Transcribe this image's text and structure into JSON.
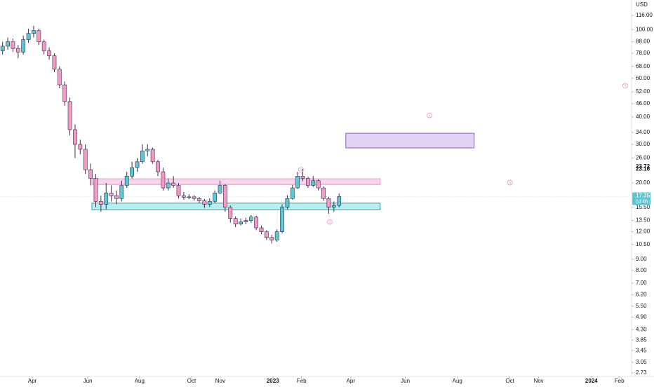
{
  "chart_data": {
    "type": "candlestick",
    "log_scale": true,
    "grid": false,
    "y_unit": "USD",
    "ylim": [
      2.73,
      116
    ],
    "yticks": [
      {
        "value": 116,
        "label": "116.00"
      },
      {
        "value": 100,
        "label": "100.00"
      },
      {
        "value": 88,
        "label": "88.00"
      },
      {
        "value": 78,
        "label": "78.00"
      },
      {
        "value": 68,
        "label": "68.00"
      },
      {
        "value": 60,
        "label": "60.00"
      },
      {
        "value": 52,
        "label": "52.00"
      },
      {
        "value": 46,
        "label": "46.00"
      },
      {
        "value": 40,
        "label": "40.00"
      },
      {
        "value": 34,
        "label": "34.00"
      },
      {
        "value": 30,
        "label": "30.00"
      },
      {
        "value": 26,
        "label": "26.00"
      },
      {
        "value": 20,
        "label": "20.00"
      },
      {
        "value": 15.5,
        "label": "15.50"
      },
      {
        "value": 13.5,
        "label": "13.50"
      },
      {
        "value": 12,
        "label": "12.00"
      },
      {
        "value": 10.5,
        "label": "10.50"
      },
      {
        "value": 9,
        "label": "9.00"
      },
      {
        "value": 8,
        "label": "8.00"
      },
      {
        "value": 7,
        "label": "7.00"
      },
      {
        "value": 6.2,
        "label": "6.20"
      },
      {
        "value": 5.5,
        "label": "5.50"
      },
      {
        "value": 4.9,
        "label": "4.90"
      },
      {
        "value": 4.3,
        "label": "4.30"
      },
      {
        "value": 3.85,
        "label": "3.85"
      },
      {
        "value": 3.45,
        "label": "3.45"
      },
      {
        "value": 3.05,
        "label": "3.05"
      },
      {
        "value": 2.73,
        "label": "2.73"
      }
    ],
    "price_labels": [
      {
        "value": 23.72,
        "label": "23.72"
      },
      {
        "value": 23.16,
        "label": "23.16"
      }
    ],
    "current_price": {
      "value": 17.35,
      "label": "17.35",
      "countdown": "1d 6h",
      "color": "#5bc8d6"
    },
    "xlim": [
      0,
      244
    ],
    "xticks": [
      {
        "value": 12.5,
        "label": "Apr"
      },
      {
        "value": 33.9,
        "label": "Jun"
      },
      {
        "value": 53.9,
        "label": "Aug"
      },
      {
        "value": 74,
        "label": "Oct"
      },
      {
        "value": 85.1,
        "label": "Nov"
      },
      {
        "value": 105.4,
        "label": "2023",
        "bold": true
      },
      {
        "value": 116.5,
        "label": "Feb"
      },
      {
        "value": 135.5,
        "label": "Apr"
      },
      {
        "value": 156.6,
        "label": "Jun"
      },
      {
        "value": 176.7,
        "label": "Aug"
      },
      {
        "value": 197,
        "label": "Oct"
      },
      {
        "value": 208.1,
        "label": "Nov"
      },
      {
        "value": 228.5,
        "label": "2024",
        "bold": true
      },
      {
        "value": 239.3,
        "label": "Feb"
      }
    ],
    "series": [
      {
        "up_color": "#5bc8d6",
        "down_color": "#f39ac7",
        "outline_color": "#3b2a4a",
        "x": [
          1,
          3,
          5,
          7,
          9,
          11,
          13,
          15,
          17,
          19,
          21,
          23,
          25,
          27,
          29,
          31,
          33,
          35,
          37,
          39,
          41,
          43,
          45,
          47,
          49,
          51,
          53,
          55,
          57,
          59,
          61,
          63,
          65,
          67,
          69,
          71,
          73,
          75,
          77,
          79,
          81,
          83,
          85,
          87,
          89,
          91,
          93,
          95,
          97,
          99,
          101,
          103,
          105,
          107,
          109,
          111,
          113,
          115,
          117,
          119,
          121,
          123,
          125,
          127,
          129,
          131
        ],
        "open": [
          80,
          84,
          88,
          82,
          79,
          90,
          96,
          99,
          88,
          80,
          76,
          66,
          56,
          47,
          35,
          30,
          28.5,
          23,
          21,
          16.5,
          16,
          18,
          17.5,
          17,
          19.5,
          21.5,
          23.5,
          25,
          28,
          28.5,
          25,
          22.5,
          19,
          20,
          19.5,
          17.5,
          17.2,
          17.3,
          17,
          16.6,
          16,
          16.5,
          18,
          19.5,
          15.5,
          13.8,
          13,
          13.3,
          13.5,
          14,
          12.5,
          12,
          11.3,
          11,
          12,
          15.5,
          17,
          19,
          21.5,
          21,
          19.5,
          20.5,
          19,
          17,
          15.5,
          15.8
        ],
        "high": [
          88,
          92,
          91,
          85,
          94,
          101,
          104,
          101,
          90,
          83,
          78,
          68,
          58,
          49,
          37,
          31.5,
          30,
          24.5,
          22,
          17.5,
          20,
          19.5,
          18.5,
          20.5,
          22.5,
          25,
          26,
          30,
          30,
          29,
          25.5,
          23.5,
          21,
          21.5,
          20,
          18.2,
          17.8,
          17.6,
          17.3,
          16.9,
          17,
          18.5,
          20.5,
          19.8,
          15.8,
          14.1,
          13.8,
          13.9,
          14.3,
          14.2,
          12.8,
          12.2,
          11.6,
          12.3,
          16,
          17.6,
          19.6,
          22.5,
          23.2,
          21.4,
          21.5,
          20.8,
          19.3,
          17.3,
          16.5,
          17.9
        ],
        "low": [
          77,
          81,
          79,
          74,
          77,
          87,
          92,
          85,
          77,
          73,
          64,
          54,
          45,
          33,
          26,
          27,
          22,
          19.5,
          15.5,
          14.8,
          15.2,
          16.5,
          16,
          16.5,
          19,
          21,
          22.5,
          24.5,
          26.5,
          24.5,
          21.5,
          18.5,
          18.5,
          19,
          17,
          16.8,
          16.9,
          16.6,
          16.2,
          15.4,
          15.6,
          16.2,
          17.8,
          14.8,
          13.2,
          12.6,
          12.8,
          13,
          13.2,
          12.2,
          11.7,
          11,
          10.6,
          10.8,
          11.8,
          15.2,
          16.8,
          18.8,
          20.4,
          19,
          19.2,
          18.5,
          16.6,
          14.5,
          14.8,
          15.5
        ],
        "close": [
          84,
          88,
          82,
          79,
          90,
          96,
          99,
          88,
          80,
          76,
          66,
          56,
          47,
          35,
          30,
          28.5,
          23,
          21,
          16.5,
          16,
          18,
          17.5,
          17,
          19.5,
          21.5,
          23.5,
          25,
          28,
          28.5,
          25,
          22.5,
          19,
          20,
          19.5,
          17.5,
          17.2,
          17.3,
          17,
          16.6,
          16,
          16.5,
          18,
          19.5,
          15.5,
          13.8,
          13,
          13.3,
          13.5,
          14,
          12.5,
          12,
          11.3,
          11,
          12,
          15.5,
          17,
          19,
          21.5,
          21,
          19.5,
          20.5,
          19,
          17,
          15.5,
          15.8,
          17.35
        ]
      }
    ],
    "zones": [
      {
        "x": [
          35.5,
          146.9
        ],
        "y": [
          19.7,
          20.9
        ],
        "color": "#f9d6ef",
        "stroke": "#f08ccc"
      },
      {
        "x": [
          35.5,
          146.9
        ],
        "y": [
          15.1,
          16.2
        ],
        "color": "#b7eeee",
        "stroke": "#26a6a6"
      },
      {
        "x": [
          133.6,
          183.2
        ],
        "y": [
          28.9,
          33.7
        ],
        "color": "#e3d3f3",
        "stroke": "#8e5bc4"
      }
    ],
    "annotations": [
      {
        "label": "1",
        "x": 116.3,
        "y": 23
      },
      {
        "label": "2",
        "x": 127.4,
        "y": 13.3
      },
      {
        "label": "3",
        "x": 165.9,
        "y": 40.7
      },
      {
        "label": "4",
        "x": 197,
        "y": 20.1
      },
      {
        "label": "5",
        "x": 241.5,
        "y": 55.5
      }
    ]
  }
}
